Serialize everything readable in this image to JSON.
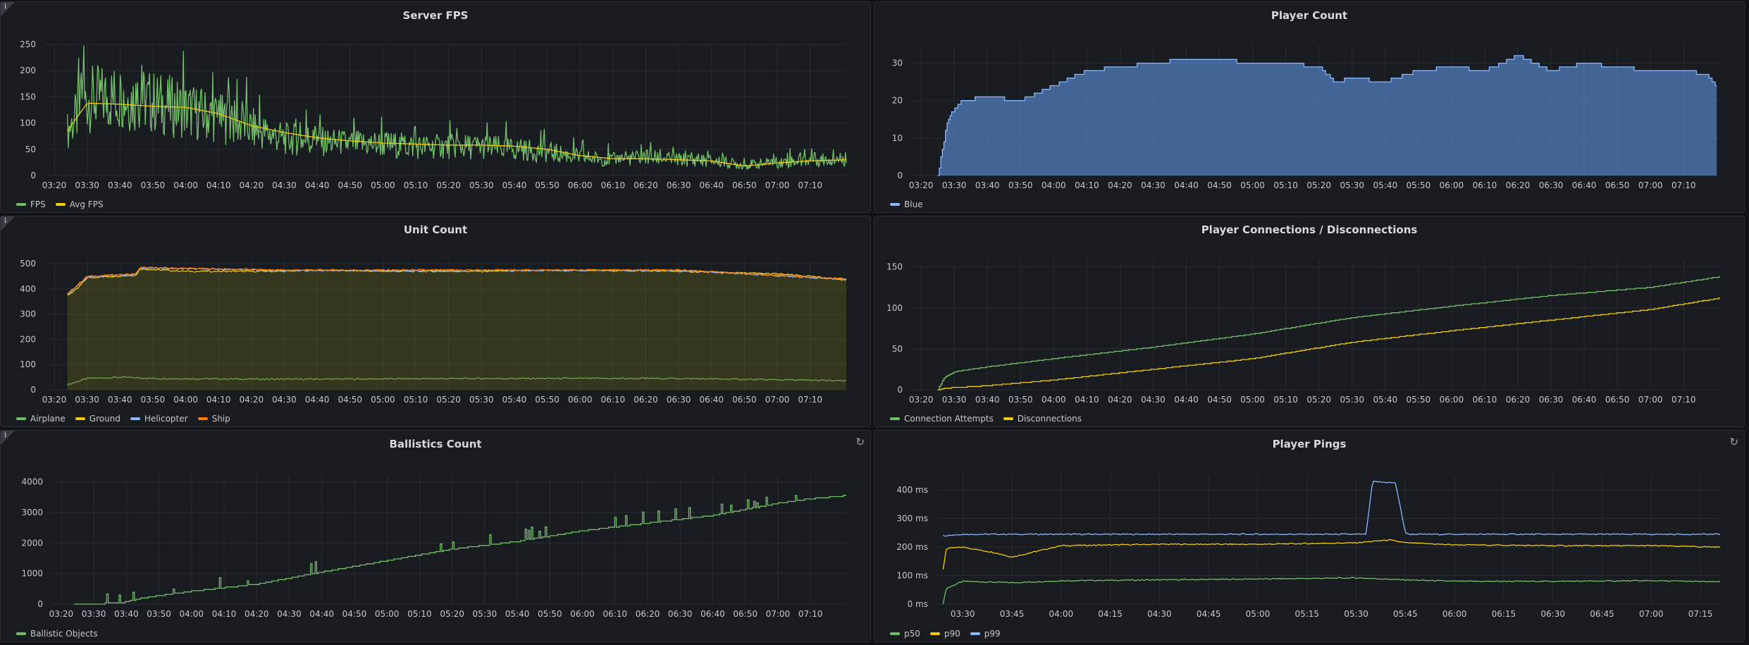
{
  "colors": {
    "green": "#73bf69",
    "yellow": "#f2cc0c",
    "blue": "#8ab8ff",
    "orange": "#ff780a",
    "blue_fill": "#5b8ed6"
  },
  "panels": {
    "fps": {
      "title": "Server FPS",
      "info_icon": "info-icon"
    },
    "players": {
      "title": "Player Count"
    },
    "units": {
      "title": "Unit Count",
      "info_icon": "info-icon"
    },
    "connections": {
      "title": "Player Connections / Disconnections"
    },
    "ballistics": {
      "title": "Ballistics Count",
      "info_icon": "info-icon",
      "refresh_icon": "refresh-icon"
    },
    "pings": {
      "title": "Player Pings",
      "refresh_icon": "refresh-icon"
    }
  },
  "chart_data": [
    {
      "id": "fps",
      "type": "line",
      "yticks": [
        0,
        50,
        100,
        150,
        200,
        250
      ],
      "ylim": [
        0,
        250
      ],
      "xticks": [
        "03:20",
        "03:30",
        "03:40",
        "03:50",
        "04:00",
        "04:10",
        "04:20",
        "04:30",
        "04:40",
        "04:50",
        "05:00",
        "05:10",
        "05:20",
        "05:30",
        "05:40",
        "05:50",
        "06:00",
        "06:10",
        "06:20",
        "06:30",
        "06:40",
        "06:50",
        "07:00",
        "07:10"
      ],
      "series": [
        {
          "name": "FPS",
          "color": "#73bf69",
          "x": [
            "03:24",
            "03:30",
            "03:40",
            "03:50",
            "04:00",
            "04:10",
            "04:20",
            "04:30",
            "04:40",
            "04:50",
            "05:00",
            "05:10",
            "05:20",
            "05:30",
            "05:40",
            "05:50",
            "06:00",
            "06:10",
            "06:20",
            "06:30",
            "06:40",
            "06:50",
            "07:00",
            "07:10",
            "07:21"
          ],
          "values": [
            85,
            145,
            150,
            140,
            125,
            110,
            90,
            70,
            65,
            60,
            60,
            55,
            55,
            55,
            50,
            45,
            35,
            30,
            35,
            30,
            28,
            20,
            25,
            30,
            32
          ]
        },
        {
          "name": "Avg FPS",
          "color": "#f2cc0c",
          "x": [
            "03:24",
            "03:30",
            "03:40",
            "03:50",
            "04:00",
            "04:10",
            "04:20",
            "04:30",
            "04:40",
            "04:50",
            "05:00",
            "05:10",
            "05:20",
            "05:30",
            "05:40",
            "05:50",
            "06:00",
            "06:10",
            "06:20",
            "06:30",
            "06:40",
            "06:50",
            "07:00",
            "07:10",
            "07:21"
          ],
          "values": [
            85,
            138,
            136,
            132,
            130,
            118,
            95,
            82,
            72,
            66,
            62,
            60,
            58,
            58,
            56,
            50,
            38,
            32,
            32,
            30,
            28,
            18,
            24,
            28,
            30
          ]
        }
      ]
    },
    {
      "id": "players",
      "type": "area",
      "yticks": [
        0,
        10,
        20,
        30
      ],
      "ylim": [
        0,
        35
      ],
      "xticks": [
        "03:20",
        "03:30",
        "03:40",
        "03:50",
        "04:00",
        "04:10",
        "04:20",
        "04:30",
        "04:40",
        "04:50",
        "05:00",
        "05:10",
        "05:20",
        "05:30",
        "05:40",
        "05:50",
        "06:00",
        "06:10",
        "06:20",
        "06:30",
        "06:40",
        "06:50",
        "07:00",
        "07:10"
      ],
      "series": [
        {
          "name": "Blue",
          "color": "#8ab8ff",
          "x": [
            "03:25",
            "03:26",
            "03:28",
            "03:32",
            "03:40",
            "03:50",
            "04:00",
            "04:10",
            "04:20",
            "04:30",
            "04:40",
            "04:50",
            "05:00",
            "05:10",
            "05:20",
            "05:25",
            "05:30",
            "05:40",
            "05:50",
            "06:00",
            "06:10",
            "06:20",
            "06:30",
            "06:40",
            "06:50",
            "07:00",
            "07:10",
            "07:17",
            "07:20"
          ],
          "values": [
            0,
            5,
            15,
            20,
            21,
            20,
            24,
            28,
            29,
            30,
            31,
            31,
            30,
            30,
            29,
            25,
            26,
            25,
            28,
            29,
            28,
            32,
            28,
            30,
            29,
            28,
            28,
            27,
            24
          ]
        }
      ]
    },
    {
      "id": "units",
      "type": "area",
      "yticks": [
        0,
        100,
        200,
        300,
        400,
        500
      ],
      "ylim": [
        0,
        520
      ],
      "xticks": [
        "03:20",
        "03:30",
        "03:40",
        "03:50",
        "04:00",
        "04:10",
        "04:20",
        "04:30",
        "04:40",
        "04:50",
        "05:00",
        "05:10",
        "05:20",
        "05:30",
        "05:40",
        "05:50",
        "06:00",
        "06:10",
        "06:20",
        "06:30",
        "06:40",
        "06:50",
        "07:00",
        "07:10"
      ],
      "series": [
        {
          "name": "Airplane",
          "color": "#73bf69",
          "x": [
            "03:24",
            "03:30",
            "03:40",
            "03:50",
            "04:30",
            "05:30",
            "06:30",
            "07:10",
            "07:21"
          ],
          "values": [
            20,
            45,
            50,
            45,
            42,
            45,
            45,
            38,
            35
          ]
        },
        {
          "name": "Ground",
          "color": "#f2cc0c",
          "x": [
            "03:24",
            "03:27",
            "03:30",
            "03:45",
            "03:46",
            "04:00",
            "04:30",
            "04:40",
            "05:00",
            "05:30",
            "06:00",
            "06:30",
            "07:00",
            "07:10",
            "07:21"
          ],
          "values": [
            375,
            400,
            445,
            455,
            480,
            470,
            470,
            475,
            470,
            470,
            475,
            470,
            460,
            450,
            435
          ]
        },
        {
          "name": "Helicopter",
          "color": "#8ab8ff",
          "x": [
            "03:24",
            "03:30",
            "03:45",
            "03:46",
            "04:30",
            "05:30",
            "06:30",
            "07:21"
          ],
          "values": [
            378,
            448,
            458,
            483,
            473,
            473,
            473,
            438
          ]
        },
        {
          "name": "Ship",
          "color": "#ff780a",
          "x": [
            "03:24",
            "03:30",
            "03:45",
            "03:46",
            "04:30",
            "05:30",
            "06:30",
            "07:21"
          ],
          "values": [
            380,
            450,
            460,
            485,
            475,
            475,
            475,
            440
          ]
        }
      ]
    },
    {
      "id": "connections",
      "type": "line",
      "yticks": [
        0,
        50,
        100,
        150
      ],
      "ylim": [
        0,
        160
      ],
      "xticks": [
        "03:20",
        "03:30",
        "03:40",
        "03:50",
        "04:00",
        "04:10",
        "04:20",
        "04:30",
        "04:40",
        "04:50",
        "05:00",
        "05:10",
        "05:20",
        "05:30",
        "05:40",
        "05:50",
        "06:00",
        "06:10",
        "06:20",
        "06:30",
        "06:40",
        "06:50",
        "07:00",
        "07:10"
      ],
      "series": [
        {
          "name": "Connection Attempts",
          "color": "#73bf69",
          "x": [
            "03:25",
            "03:27",
            "03:30",
            "03:40",
            "04:00",
            "04:30",
            "05:00",
            "05:30",
            "06:00",
            "06:30",
            "07:00",
            "07:21"
          ],
          "values": [
            0,
            15,
            22,
            28,
            38,
            52,
            68,
            88,
            102,
            115,
            125,
            138
          ]
        },
        {
          "name": "Disconnections",
          "color": "#f2cc0c",
          "x": [
            "03:25",
            "03:27",
            "03:40",
            "04:00",
            "04:30",
            "05:00",
            "05:30",
            "06:00",
            "06:30",
            "07:00",
            "07:21"
          ],
          "values": [
            0,
            2,
            5,
            12,
            25,
            38,
            58,
            72,
            85,
            98,
            112
          ]
        }
      ]
    },
    {
      "id": "ballistics",
      "type": "line",
      "yticks": [
        0,
        1000,
        2000,
        3000,
        4000
      ],
      "ylim": [
        0,
        4200
      ],
      "xticks": [
        "03:20",
        "03:30",
        "03:40",
        "03:50",
        "04:00",
        "04:10",
        "04:20",
        "04:30",
        "04:40",
        "04:50",
        "05:00",
        "05:10",
        "05:20",
        "05:30",
        "05:40",
        "05:50",
        "06:00",
        "06:10",
        "06:20",
        "06:30",
        "06:40",
        "06:50",
        "07:00",
        "07:10"
      ],
      "series": [
        {
          "name": "Ballistic Objects",
          "color": "#73bf69",
          "x": [
            "03:24",
            "03:38",
            "03:45",
            "04:00",
            "04:20",
            "04:40",
            "05:00",
            "05:20",
            "05:40",
            "06:00",
            "06:20",
            "06:40",
            "07:00",
            "07:10",
            "07:21"
          ],
          "values": [
            0,
            30,
            200,
            420,
            650,
            1050,
            1420,
            1800,
            2050,
            2400,
            2650,
            2900,
            3300,
            3450,
            3550
          ]
        }
      ]
    },
    {
      "id": "pings",
      "type": "line",
      "yticks": [
        "0 ms",
        "100 ms",
        "200 ms",
        "300 ms",
        "400 ms"
      ],
      "ylim": [
        0,
        450
      ],
      "xticks": [
        "03:30",
        "03:45",
        "04:00",
        "04:15",
        "04:30",
        "04:45",
        "05:00",
        "05:15",
        "05:30",
        "05:45",
        "06:00",
        "06:15",
        "06:30",
        "06:45",
        "07:00",
        "07:15"
      ],
      "series": [
        {
          "name": "p50",
          "color": "#73bf69",
          "x": [
            "03:24",
            "03:25",
            "03:30",
            "03:45",
            "04:00",
            "04:30",
            "05:00",
            "05:30",
            "05:45",
            "06:00",
            "06:30",
            "07:00",
            "07:21"
          ],
          "values": [
            0,
            55,
            80,
            75,
            82,
            85,
            88,
            92,
            85,
            80,
            80,
            82,
            78
          ]
        },
        {
          "name": "p90",
          "color": "#f2cc0c",
          "x": [
            "03:24",
            "03:25",
            "03:30",
            "03:40",
            "03:45",
            "04:00",
            "04:30",
            "05:00",
            "05:30",
            "05:40",
            "05:45",
            "06:00",
            "06:30",
            "07:00",
            "07:21"
          ],
          "values": [
            120,
            195,
            200,
            180,
            165,
            205,
            210,
            210,
            215,
            225,
            215,
            208,
            205,
            205,
            200
          ]
        },
        {
          "name": "p99",
          "color": "#8ab8ff",
          "x": [
            "03:24",
            "03:30",
            "04:00",
            "05:00",
            "05:33",
            "05:35",
            "05:42",
            "05:45",
            "05:46",
            "06:00",
            "07:00",
            "07:21"
          ],
          "values": [
            240,
            245,
            245,
            245,
            245,
            430,
            425,
            250,
            245,
            245,
            245,
            245
          ]
        }
      ]
    }
  ]
}
